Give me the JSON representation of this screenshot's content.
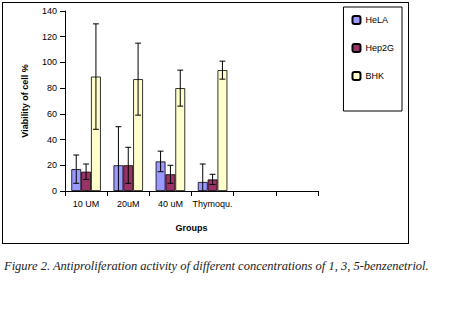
{
  "chart_data": {
    "type": "bar",
    "caption": "Figure 2. Antiproliferation activity of different concentrations of 1, 3, 5-benzenetriol.",
    "x_label": "Groups",
    "y_label": "Viability of cell %",
    "categories": [
      "10 UM",
      "20uM",
      "40 uM",
      "Thymoqu.",
      null,
      null
    ],
    "series": [
      {
        "name": "HeLA",
        "color": "#9999ff",
        "values": [
          17,
          20,
          23,
          7,
          null,
          null
        ],
        "errors": [
          11,
          30,
          8,
          14,
          null,
          null
        ]
      },
      {
        "name": "Hep2G",
        "color": "#993366",
        "values": [
          15,
          20,
          13,
          9,
          null,
          null
        ],
        "errors": [
          6,
          14,
          7,
          4,
          null,
          null
        ]
      },
      {
        "name": "BHK",
        "color": "#ffffcc",
        "values": [
          89,
          87,
          80,
          94,
          null,
          null
        ],
        "errors": [
          41,
          28,
          14,
          7,
          null,
          null
        ]
      }
    ],
    "ylim": [
      0,
      140
    ],
    "yticks": [
      0,
      20,
      40,
      60,
      80,
      100,
      120,
      140
    ],
    "grid": false,
    "legend": "right"
  }
}
